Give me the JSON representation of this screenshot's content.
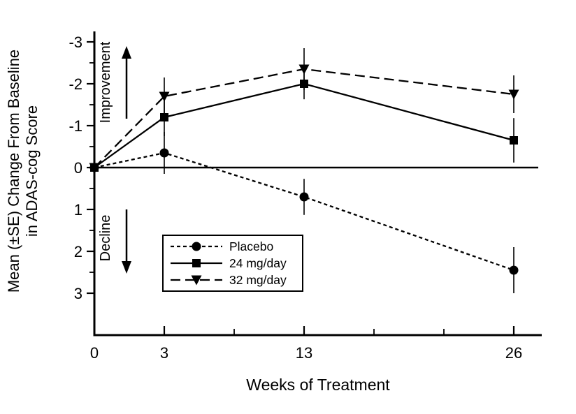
{
  "chart_data": {
    "type": "line",
    "title": "",
    "xlabel": "Weeks of Treatment",
    "ylabel_lines": [
      "Mean (±SE) Change From Baseline",
      "in ADAS-cog Score"
    ],
    "x_weeks": [
      0,
      3,
      13,
      26
    ],
    "x_tick_labels": [
      "0",
      "3",
      "13",
      "26"
    ],
    "x_tick_units": [
      0,
      1,
      3,
      6
    ],
    "x_minor_tick_units": [
      2,
      4,
      5
    ],
    "y_ticks": [
      -3,
      -2,
      -1,
      0,
      1,
      2,
      3
    ],
    "y_minor_step": 0.5,
    "ylim": [
      -3,
      3
    ],
    "y_axis_note": "inverted: negative change (improvement) plotted upward",
    "zero_reference_line": 0,
    "series": [
      {
        "name": "Placebo",
        "marker": "circle",
        "line_style": "dashed",
        "values": [
          0,
          -0.35,
          0.7,
          2.45
        ],
        "se": [
          0.37,
          0.5,
          0.43,
          0.55
        ]
      },
      {
        "name": "24 mg/day",
        "marker": "square",
        "line_style": "solid",
        "values": [
          0,
          -1.2,
          -2.0,
          -0.65
        ],
        "se": [
          0.37,
          0.45,
          0.37,
          0.53
        ]
      },
      {
        "name": "32 mg/day",
        "marker": "triangle-down",
        "line_style": "long-dash",
        "values": [
          0,
          -1.7,
          -2.35,
          -1.75
        ],
        "se": [
          0.37,
          0.45,
          0.5,
          0.45
        ]
      }
    ],
    "annotations": {
      "improvement": "Improvement",
      "decline": "Decline"
    },
    "legend": {
      "position": "inside-left-below-zero",
      "entries": [
        "Placebo",
        "24 mg/day",
        "32 mg/day"
      ]
    },
    "colors": {
      "fg": "#000000",
      "bg": "#ffffff"
    }
  }
}
